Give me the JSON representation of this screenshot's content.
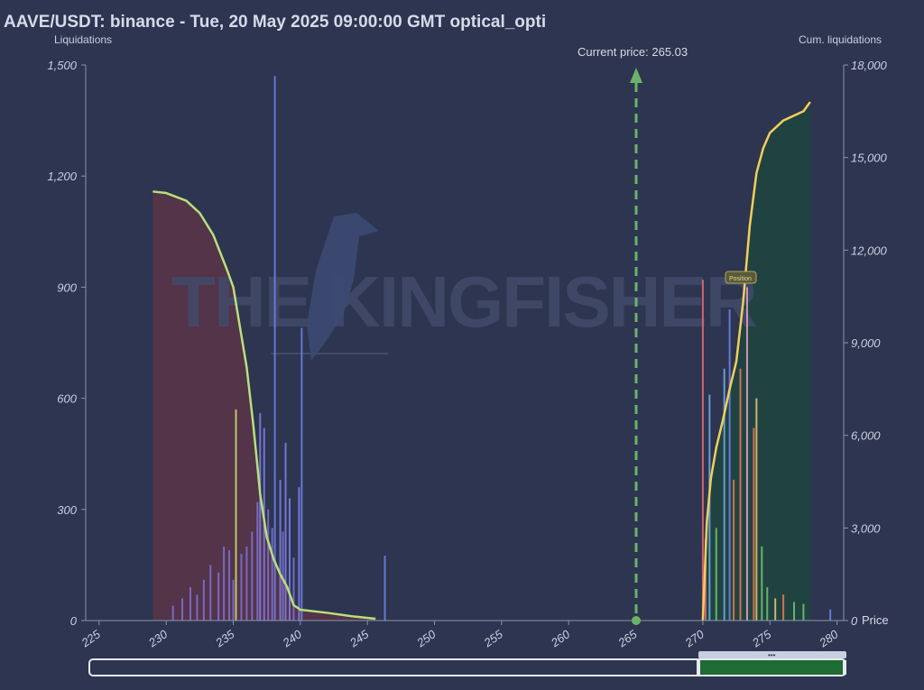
{
  "title": "AAVE/USDT: binance - Tue, 20 May 2025 09:00:00 GMT optical_opti",
  "watermark": "THE KINGFISHER",
  "position_tag": "Position",
  "current_price_label": "Current price: 265.03",
  "colors": {
    "background": "#2d3550",
    "short_curve": "#b9e07a",
    "long_curve": "#f2cf5b",
    "short_fill": "#5a3448",
    "long_fill": "#1f4540",
    "current_price_line": "#6bb36a",
    "slider_fill": "#1e6b34"
  },
  "chart_data": {
    "type": "bar",
    "title": "AAVE/USDT: binance - Tue, 20 May 2025 09:00:00 GMT optical_opti",
    "xlabel": "Price",
    "ylabel": "Liquidations",
    "y2label": "Cum. liquidations",
    "xlim": [
      224,
      280.5
    ],
    "ylim": [
      0,
      1500
    ],
    "y2lim": [
      0,
      18000
    ],
    "x_ticks": [
      225,
      230,
      235,
      240,
      245,
      250,
      255,
      260,
      265,
      270,
      275,
      280
    ],
    "y_ticks": [
      0,
      300,
      600,
      900,
      1200,
      1500
    ],
    "y2_ticks": [
      0,
      3000,
      6000,
      9000,
      12000,
      15000,
      18000
    ],
    "x_tick_labels": [
      "225",
      "230",
      "235",
      "240",
      "245",
      "250",
      "255",
      "260",
      "265",
      "270",
      "275",
      "280"
    ],
    "y_tick_labels": [
      "0",
      "300",
      "600",
      "900",
      "1,200",
      "1,500"
    ],
    "y2_tick_labels": [
      "0",
      "3,000",
      "6,000",
      "9,000",
      "12,000",
      "15,000",
      "18,000"
    ],
    "current_price": 265.03,
    "bars": [
      {
        "x": 230.5,
        "value": 40,
        "color": "#7d6fd0"
      },
      {
        "x": 231.2,
        "value": 60,
        "color": "#7d6fd0"
      },
      {
        "x": 231.8,
        "value": 90,
        "color": "#7d6fd0"
      },
      {
        "x": 232.3,
        "value": 70,
        "color": "#7d6fd0"
      },
      {
        "x": 232.8,
        "value": 110,
        "color": "#7d6fd0"
      },
      {
        "x": 233.3,
        "value": 150,
        "color": "#7d6fd0"
      },
      {
        "x": 233.9,
        "value": 130,
        "color": "#7d6fd0"
      },
      {
        "x": 234.3,
        "value": 200,
        "color": "#7d6fd0"
      },
      {
        "x": 234.7,
        "value": 190,
        "color": "#7d6fd0"
      },
      {
        "x": 235.0,
        "value": 110,
        "color": "#7d6fd0"
      },
      {
        "x": 235.2,
        "value": 570,
        "color": "#c9d870"
      },
      {
        "x": 235.6,
        "value": 180,
        "color": "#7d6fd0"
      },
      {
        "x": 236.0,
        "value": 200,
        "color": "#7d6fd0"
      },
      {
        "x": 236.4,
        "value": 240,
        "color": "#7d6fd0"
      },
      {
        "x": 236.8,
        "value": 320,
        "color": "#7d6fd0"
      },
      {
        "x": 237.0,
        "value": 560,
        "color": "#7d7de0"
      },
      {
        "x": 237.3,
        "value": 520,
        "color": "#7d7de0"
      },
      {
        "x": 237.6,
        "value": 300,
        "color": "#7d6fd0"
      },
      {
        "x": 237.9,
        "value": 250,
        "color": "#7d6fd0"
      },
      {
        "x": 238.1,
        "value": 1470,
        "color": "#6c7fe0"
      },
      {
        "x": 238.5,
        "value": 380,
        "color": "#7d7de0"
      },
      {
        "x": 238.7,
        "value": 240,
        "color": "#7d6fd0"
      },
      {
        "x": 238.9,
        "value": 480,
        "color": "#7d7de0"
      },
      {
        "x": 239.2,
        "value": 330,
        "color": "#7d7de0"
      },
      {
        "x": 239.5,
        "value": 170,
        "color": "#7d6fd0"
      },
      {
        "x": 239.9,
        "value": 360,
        "color": "#7d7de0"
      },
      {
        "x": 240.1,
        "value": 790,
        "color": "#6c7fe0"
      },
      {
        "x": 246.3,
        "value": 175,
        "color": "#6c7fe0"
      },
      {
        "x": 270.0,
        "value": 920,
        "color": "#e06a70"
      },
      {
        "x": 270.2,
        "value": 220,
        "color": "#e06a70"
      },
      {
        "x": 270.5,
        "value": 610,
        "color": "#70a8e0"
      },
      {
        "x": 271.0,
        "value": 250,
        "color": "#70c070"
      },
      {
        "x": 271.6,
        "value": 680,
        "color": "#70a8e0"
      },
      {
        "x": 272.0,
        "value": 840,
        "color": "#6c7fe0"
      },
      {
        "x": 272.3,
        "value": 380,
        "color": "#e07a50"
      },
      {
        "x": 272.8,
        "value": 680,
        "color": "#e07a50"
      },
      {
        "x": 273.3,
        "value": 900,
        "color": "#e0a0c0"
      },
      {
        "x": 273.8,
        "value": 520,
        "color": "#e07a50"
      },
      {
        "x": 274.0,
        "value": 600,
        "color": "#e0c070"
      },
      {
        "x": 274.4,
        "value": 200,
        "color": "#70c070"
      },
      {
        "x": 274.8,
        "value": 90,
        "color": "#70c070"
      },
      {
        "x": 275.4,
        "value": 60,
        "color": "#e0c070"
      },
      {
        "x": 276.0,
        "value": 70,
        "color": "#e07a50"
      },
      {
        "x": 276.8,
        "value": 50,
        "color": "#70c070"
      },
      {
        "x": 277.5,
        "value": 45,
        "color": "#70c070"
      },
      {
        "x": 279.5,
        "value": 30,
        "color": "#6c7fe0"
      }
    ],
    "series": [
      {
        "key": "short_cum",
        "axis": "y2",
        "x": [
          229.0,
          230.0,
          231.5,
          232.5,
          233.5,
          234.5,
          235.0,
          236.0,
          236.5,
          236.8,
          237.0,
          237.5,
          238.0,
          238.5,
          239.0,
          239.5,
          240.0,
          242.0,
          244.0,
          245.6
        ],
        "values": [
          13900,
          13850,
          13600,
          13200,
          12500,
          11400,
          10800,
          8200,
          6300,
          5000,
          4100,
          2700,
          2000,
          1500,
          1100,
          500,
          350,
          250,
          130,
          60
        ]
      },
      {
        "key": "long_cum",
        "axis": "y2",
        "x": [
          270.0,
          270.3,
          270.6,
          271.0,
          271.5,
          272.0,
          272.5,
          273.0,
          273.5,
          274.0,
          274.5,
          275.0,
          275.5,
          276.0,
          276.5,
          277.0,
          277.5,
          278.0
        ],
        "values": [
          0,
          3200,
          4600,
          5600,
          6500,
          7500,
          8400,
          10300,
          12800,
          14500,
          15300,
          15800,
          16000,
          16200,
          16300,
          16400,
          16500,
          16800
        ]
      }
    ],
    "range_slider": {
      "start_fraction": 0.8,
      "end_fraction": 1.0
    }
  }
}
